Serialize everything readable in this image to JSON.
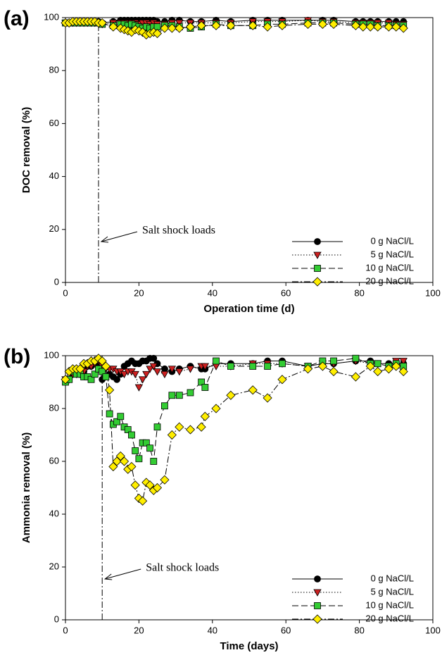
{
  "chart_data": [
    {
      "type": "line",
      "panel_label": "(a)",
      "x_label": "Operation time (d)",
      "y_label": "DOC removal (%)",
      "xlim": [
        0,
        100
      ],
      "ylim": [
        0,
        100
      ],
      "xticks": [
        0,
        20,
        40,
        60,
        80,
        100
      ],
      "yticks": [
        0,
        20,
        40,
        60,
        80,
        100
      ],
      "grid": false,
      "legend": "lower right",
      "annotation": {
        "text": "Salt shock loads",
        "x": 9
      },
      "x": [
        0,
        1,
        2,
        3,
        4,
        5,
        6,
        7,
        8,
        9,
        10,
        13,
        15,
        16,
        17,
        18,
        19,
        20,
        21,
        22,
        23,
        24,
        25,
        27,
        29,
        31,
        34,
        37,
        41,
        45,
        51,
        55,
        59,
        66,
        70,
        73,
        79,
        81,
        83,
        85,
        88,
        90,
        92
      ],
      "series": [
        {
          "name": "0 g NaCl/L",
          "color": "#000000",
          "marker": "circle",
          "dash": "solid",
          "values": [
            98,
            98,
            98,
            98,
            98.5,
            98.5,
            98.5,
            98.5,
            98.5,
            98.5,
            98,
            98.5,
            99,
            99,
            99,
            99,
            99,
            99,
            99,
            99,
            99,
            99,
            98.5,
            98.5,
            99,
            99,
            98.5,
            98.5,
            99,
            98.5,
            99,
            99,
            99,
            99,
            99,
            99,
            98.5,
            98.5,
            98.5,
            98.5,
            98.5,
            98.5,
            98.5
          ]
        },
        {
          "name": "5 g NaCl/L",
          "color": "#cc2020",
          "marker": "triangle-down",
          "dash": "dotted",
          "values": [
            98,
            98,
            98,
            98,
            98,
            98,
            98,
            98,
            98,
            98,
            97.5,
            98,
            98,
            98,
            98,
            98,
            98,
            97.5,
            98,
            98,
            97.5,
            98,
            97.5,
            97.5,
            98,
            98,
            98,
            98,
            98,
            98,
            98.5,
            98.5,
            98.5,
            99,
            98.5,
            98.5,
            98,
            98,
            98,
            98,
            98,
            97.5,
            97.5
          ]
        },
        {
          "name": "10 g NaCl/L",
          "color": "#33cc33",
          "marker": "square",
          "dash": "dashed",
          "values": [
            98,
            98,
            98,
            98,
            98,
            98,
            98,
            98,
            98,
            98,
            97.5,
            97,
            97.5,
            97.5,
            97,
            97.5,
            97,
            96.5,
            96,
            96.5,
            96,
            96.5,
            96.5,
            97,
            97,
            96.5,
            96,
            96.5,
            97.5,
            97,
            97,
            97.5,
            97.5,
            98,
            98,
            98,
            97.5,
            97.5,
            97.5,
            97,
            97,
            97,
            97
          ]
        },
        {
          "name": "20 g NaCl/L",
          "color": "#ffee00",
          "marker": "diamond",
          "dash": "dashdot",
          "values": [
            98,
            98,
            98.5,
            98.5,
            98.5,
            98.5,
            98.5,
            98.5,
            98.5,
            98,
            98,
            96.5,
            96,
            95.5,
            95,
            94.5,
            95.5,
            95,
            94.5,
            93.5,
            94,
            94.5,
            94,
            96,
            96,
            96,
            96.5,
            97,
            97,
            97,
            97,
            96.5,
            97,
            97.5,
            97.5,
            97.5,
            97,
            96.5,
            96.5,
            96.5,
            96.5,
            96.5,
            96
          ]
        }
      ]
    },
    {
      "type": "line",
      "panel_label": "(b)",
      "x_label": "Time (days)",
      "y_label": "Ammonia removal (%)",
      "xlim": [
        0,
        100
      ],
      "ylim": [
        0,
        100
      ],
      "xticks": [
        0,
        20,
        40,
        60,
        80,
        100
      ],
      "yticks": [
        0,
        20,
        40,
        60,
        80,
        100
      ],
      "grid": false,
      "legend": "lower right",
      "annotation": {
        "text": "Salt shock loads",
        "x": 10
      },
      "x": [
        0,
        1,
        2,
        3,
        4,
        5,
        6,
        7,
        8,
        9,
        10,
        11,
        12,
        13,
        14,
        15,
        16,
        17,
        18,
        19,
        20,
        21,
        22,
        23,
        24,
        25,
        27,
        29,
        31,
        34,
        37,
        38,
        41,
        45,
        51,
        55,
        59,
        66,
        70,
        73,
        79,
        83,
        85,
        88,
        90,
        92
      ],
      "series": [
        {
          "name": "0 g NaCl/L",
          "color": "#000000",
          "marker": "circle",
          "dash": "solid",
          "values": [
            91,
            91,
            93,
            93,
            93,
            94,
            96,
            96,
            97,
            97,
            91,
            92,
            93,
            92,
            91,
            93,
            96,
            97,
            98,
            97,
            97,
            98,
            98,
            99,
            99,
            97,
            95,
            94,
            95,
            96,
            95,
            95,
            97,
            97,
            97,
            98,
            98,
            96,
            97,
            97,
            98,
            98,
            97,
            97,
            97,
            97
          ]
        },
        {
          "name": "5 g NaCl/L",
          "color": "#cc2020",
          "marker": "triangle-down",
          "dash": "dotted",
          "values": [
            91,
            91,
            93,
            93,
            93,
            94,
            96,
            96,
            97,
            98,
            96,
            95,
            95,
            95,
            94,
            94,
            93,
            94,
            94,
            93,
            88,
            91,
            93,
            95,
            96,
            94,
            93,
            95,
            94,
            95,
            96,
            96,
            96,
            96,
            97,
            97,
            97,
            96,
            97,
            97,
            98,
            97,
            97,
            96,
            98,
            98
          ]
        },
        {
          "name": "10 g NaCl/L",
          "color": "#33cc33",
          "marker": "square",
          "dash": "dashed",
          "values": [
            90,
            91,
            94,
            93,
            93,
            92,
            92,
            91,
            93,
            95,
            94,
            92,
            78,
            74,
            75,
            77,
            73,
            72,
            70,
            64,
            61,
            67,
            67,
            65,
            60,
            73,
            81,
            85,
            85,
            86,
            90,
            88,
            98,
            96,
            96,
            96,
            97,
            96,
            98,
            98,
            99,
            97,
            97,
            96,
            97,
            96
          ]
        },
        {
          "name": "20 g NaCl/L",
          "color": "#ffee00",
          "marker": "diamond",
          "dash": "dashdot",
          "values": [
            91,
            94,
            95,
            95,
            95,
            97,
            97,
            98,
            98,
            99,
            98,
            96,
            87,
            58,
            60,
            62,
            60,
            57,
            58,
            51,
            46,
            45,
            52,
            51,
            49,
            50,
            53,
            70,
            73,
            72,
            73,
            77,
            80,
            85,
            87,
            84,
            91,
            95,
            96,
            94,
            92,
            96,
            94,
            95,
            96,
            94
          ]
        }
      ]
    }
  ]
}
